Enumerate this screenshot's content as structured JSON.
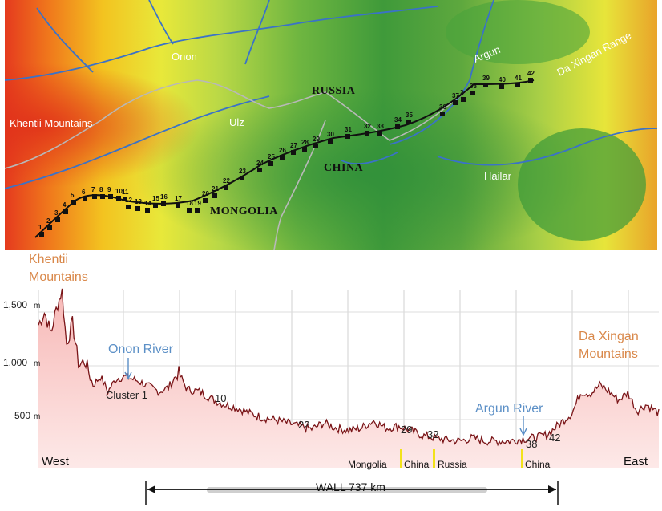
{
  "map": {
    "labels": {
      "onon": "Onon",
      "argun": "Argun",
      "da_xingan_range": "Da Xingan Range",
      "khentii_mountains": "Khentii Mountains",
      "ulz": "Ulz",
      "hailar": "Hailar",
      "russia": "RUSSIA",
      "china": "CHINA",
      "mongolia": "MONGOLIA"
    },
    "clusters": [
      "1",
      "2",
      "3",
      "4",
      "5",
      "6",
      "7",
      "8",
      "9",
      "10",
      "11",
      "12",
      "13",
      "14",
      "15",
      "16",
      "17",
      "18",
      "19",
      "20",
      "21",
      "22",
      "23",
      "24",
      "25",
      "26",
      "27",
      "28",
      "29",
      "30",
      "31",
      "32",
      "33",
      "34",
      "35",
      "36",
      "37",
      "2",
      "38",
      "39",
      "40",
      "41",
      "42"
    ]
  },
  "profile": {
    "y_ticks": [
      {
        "value": 1500,
        "label": "1,500",
        "unit": "m"
      },
      {
        "value": 1000,
        "label": "1,000",
        "unit": "m"
      },
      {
        "value": 500,
        "label": "500",
        "unit": "m"
      }
    ],
    "titles": {
      "khentii_line1": "Khentii",
      "khentii_line2": "Mountains",
      "da_xingan_line1": "Da Xingan",
      "da_xingan_line2": "Mountains",
      "onon_river": "Onon River",
      "argun_river": "Argun River"
    },
    "annotations": {
      "cluster1": "Cluster 1",
      "n10": "10",
      "n22": "22",
      "n29": "29",
      "n32": "32",
      "n38": "38",
      "n42": "42"
    },
    "directions": {
      "west": "West",
      "east": "East"
    },
    "borders": {
      "mongolia": "Mongolia",
      "china1": "China",
      "russia": "Russia",
      "china2": "China"
    },
    "wall_label": "WALL 737 km",
    "colors": {
      "fill": "#f7b8b6",
      "line": "#7a1518",
      "grid": "#c8c8c8",
      "border_marker": "#f2e21a"
    }
  }
}
